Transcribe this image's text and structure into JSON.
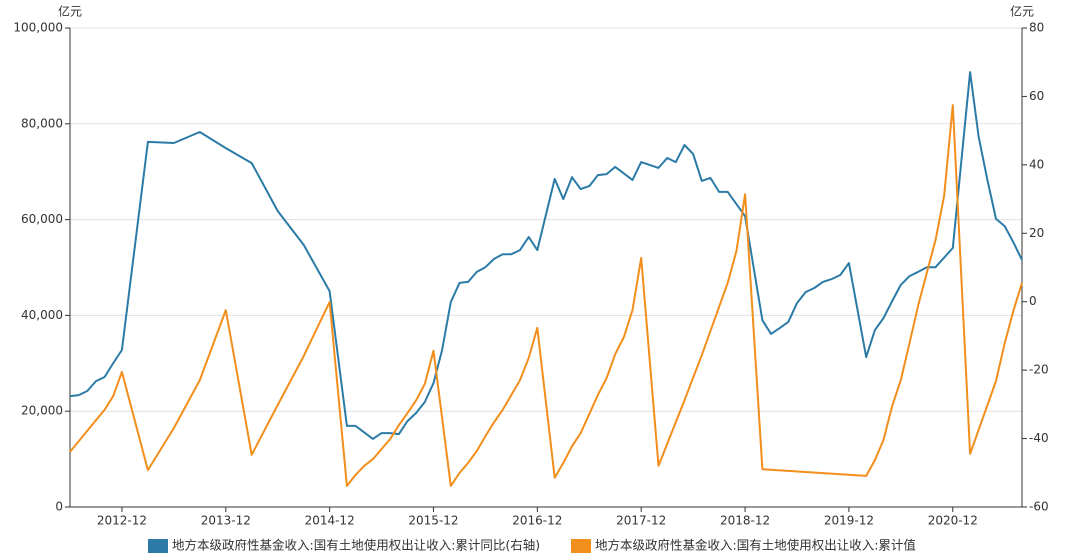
{
  "chart_data": {
    "type": "line",
    "y_unit": "亿元",
    "y2_unit": "亿元",
    "xlim": [
      "2012-06",
      "2021-08"
    ],
    "xticks": [
      "2012-12",
      "2013-12",
      "2014-12",
      "2015-12",
      "2016-12",
      "2017-12",
      "2018-12",
      "2019-12",
      "2020-12"
    ],
    "ylim": [
      0,
      100000
    ],
    "yticks": [
      0,
      {
        "value": 20000,
        "label": "20,000"
      },
      {
        "value": 40000,
        "label": "40,000"
      },
      {
        "value": 60000,
        "label": "60,000"
      },
      {
        "value": 80000,
        "label": "80,000"
      },
      {
        "value": 100000,
        "label": "100,000"
      }
    ],
    "y2lim": [
      -60,
      80
    ],
    "y2ticks": [
      -60,
      -40,
      -20,
      0,
      20,
      40,
      60,
      80
    ],
    "grid": true,
    "legend": "bottom",
    "series": [
      {
        "name": "地方本级政府性基金收入:国有土地使用权出让收入:累计同比(右轴)",
        "color": "#2b7ba6",
        "axis": "y2",
        "x": [
          "2012-06",
          "2012-07",
          "2012-08",
          "2012-09",
          "2012-10",
          "2012-11",
          "2012-12",
          "2013-03",
          "2013-06",
          "2013-09",
          "2013-12",
          "2014-03",
          "2014-06",
          "2014-09",
          "2014-12",
          "2015-02",
          "2015-03",
          "2015-05",
          "2015-06",
          "2015-07",
          "2015-08",
          "2015-09",
          "2015-10",
          "2015-11",
          "2015-12",
          "2016-01",
          "2016-02",
          "2016-03",
          "2016-04",
          "2016-05",
          "2016-06",
          "2016-07",
          "2016-08",
          "2016-09",
          "2016-10",
          "2016-11",
          "2016-12",
          "2017-02",
          "2017-03",
          "2017-04",
          "2017-05",
          "2017-06",
          "2017-07",
          "2017-08",
          "2017-09",
          "2017-11",
          "2017-12",
          "2018-02",
          "2018-03",
          "2018-04",
          "2018-05",
          "2018-06",
          "2018-07",
          "2018-08",
          "2018-09",
          "2018-10",
          "2018-12",
          "2019-02",
          "2019-03",
          "2019-04",
          "2019-05",
          "2019-06",
          "2019-07",
          "2019-08",
          "2019-09",
          "2019-10",
          "2019-11",
          "2019-12",
          "2020-02",
          "2020-03",
          "2020-04",
          "2020-05",
          "2020-06",
          "2020-07",
          "2020-08",
          "2020-09",
          "2020-10",
          "2020-12",
          "2021-02",
          "2021-03",
          "2021-04",
          "2021-05",
          "2021-06",
          "2021-07",
          "2021-08"
        ],
        "values": [
          -27.6,
          -27.3,
          -26.1,
          -23.2,
          -22.0,
          -17.9,
          -14.1,
          46.7,
          46.4,
          49.6,
          44.9,
          40.5,
          26.5,
          16.6,
          3.1,
          -36.3,
          -36.3,
          -40.1,
          -38.4,
          -38.4,
          -38.7,
          -34.9,
          -32.5,
          -29.3,
          -23.8,
          -14.1,
          -0.1,
          5.5,
          5.8,
          8.7,
          10.1,
          12.5,
          13.9,
          13.9,
          15.1,
          18.9,
          15.1,
          35.9,
          30.0,
          36.4,
          32.9,
          33.8,
          37.0,
          37.3,
          39.4,
          35.6,
          40.8,
          39.1,
          42.0,
          40.8,
          45.8,
          43.2,
          35.3,
          36.2,
          32.1,
          32.1,
          25.0,
          -5.4,
          -9.4,
          -7.7,
          -5.9,
          -0.4,
          2.8,
          4.0,
          5.8,
          6.6,
          7.8,
          11.3,
          -16.2,
          -8.3,
          -4.8,
          0.2,
          4.9,
          7.5,
          8.7,
          10.1,
          10.1,
          15.7,
          67.1,
          48.1,
          35.6,
          24.2,
          22.1,
          17.4,
          12.2
        ]
      },
      {
        "name": "地方本级政府性基金收入:国有土地使用权出让收入:累计值",
        "color": "#f28e1c",
        "x": [
          "2012-06",
          "2012-08",
          "2012-10",
          "2012-11",
          "2012-12",
          "2013-03",
          "2013-06",
          "2013-09",
          "2013-12",
          "2014-03",
          "2014-06",
          "2014-09",
          "2014-12",
          "2015-02",
          "2015-03",
          "2015-04",
          "2015-05",
          "2015-06",
          "2015-07",
          "2015-08",
          "2015-09",
          "2015-10",
          "2015-11",
          "2015-12",
          "2016-02",
          "2016-03",
          "2016-04",
          "2016-05",
          "2016-06",
          "2016-07",
          "2016-08",
          "2016-09",
          "2016-10",
          "2016-11",
          "2016-12",
          "2017-02",
          "2017-03",
          "2017-04",
          "2017-05",
          "2017-06",
          "2017-07",
          "2017-08",
          "2017-09",
          "2017-10",
          "2017-11",
          "2017-12",
          "2018-02",
          "2018-05",
          "2018-07",
          "2018-10",
          "2018-11",
          "2018-12",
          "2019-02",
          "2020-02",
          "2020-03",
          "2020-04",
          "2020-05",
          "2020-06",
          "2020-07",
          "2020-08",
          "2020-09",
          "2020-10",
          "2020-11",
          "2020-12",
          "2021-02",
          "2021-05",
          "2021-06",
          "2021-07",
          "2021-08"
        ],
        "values": [
          11500,
          15900,
          20300,
          23200,
          28200,
          7700,
          16500,
          26500,
          41100,
          10900,
          21300,
          31500,
          42800,
          4400,
          6700,
          8600,
          10000,
          12100,
          14200,
          17100,
          19600,
          22300,
          25700,
          32600,
          4400,
          7100,
          9200,
          11700,
          14800,
          17700,
          20300,
          23400,
          26500,
          31100,
          37400,
          6100,
          9200,
          12700,
          15400,
          19400,
          23400,
          26900,
          31900,
          35500,
          41100,
          52000,
          8600,
          22300,
          31700,
          46800,
          53400,
          65300,
          7900,
          6500,
          9800,
          14000,
          21100,
          26500,
          34200,
          42000,
          48900,
          55700,
          64900,
          83900,
          11100,
          26300,
          34200,
          40900,
          46800
        ]
      }
    ]
  }
}
